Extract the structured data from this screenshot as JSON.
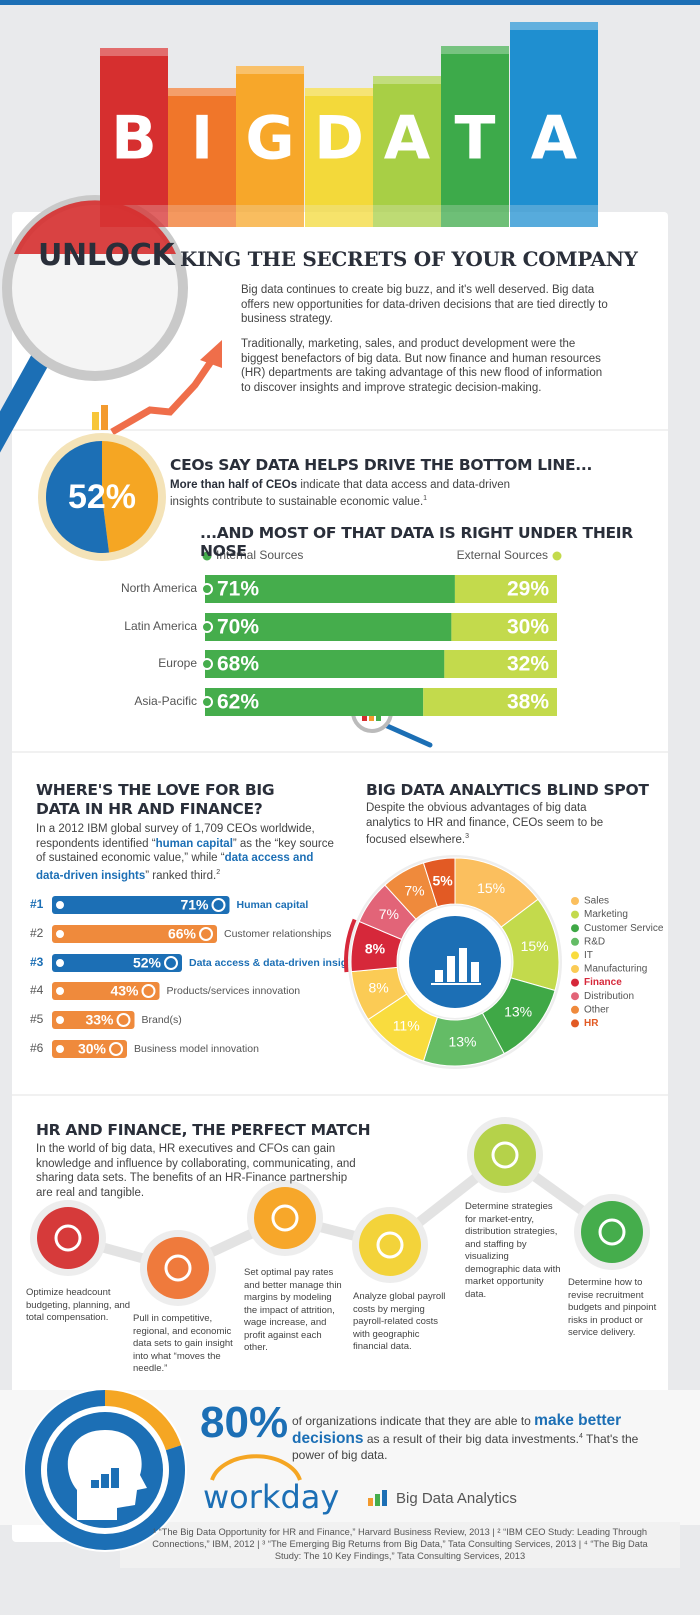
{
  "header": {
    "letters": [
      "B",
      "I",
      "G",
      "D",
      "A",
      "T",
      "A"
    ],
    "unlock": "UNLOCK",
    "subtitle": "KING THE SECRETS OF YOUR COMPANY"
  },
  "intro": [
    "Big data continues to create big buzz, and it's well deserved. Big data offers new opportunities for data-driven decisions that are tied directly to business strategy.",
    "Traditionally, marketing, sales, and product development were the biggest benefactors of big data. But now finance and human resources (HR) departments are taking advantage of this new flood of information to discover insights and improve strategic decision-making."
  ],
  "ceo": {
    "heading": "CEOs SAY DATA HELPS DRIVE THE BOTTOM LINE...",
    "lead": "More than half of CEOs",
    "text": "indicate that data access and data-driven insights contribute to sustainable economic value.",
    "note": "1"
  },
  "sources": {
    "heading": "...AND MOST OF THAT DATA IS RIGHT UNDER THEIR NOSE"
  },
  "love": {
    "heading": "WHERE'S THE LOVE FOR BIG DATA IN HR AND FINANCE?",
    "text": [
      "In a 2012 IBM global survey of 1,709 CEOs worldwide, respondents identified “",
      "human capital",
      "” as the “key source of sustained economic value,” while “",
      "data access and data-driven insights",
      "” ranked third."
    ],
    "note": "2"
  },
  "blind": {
    "heading": "BIG DATA ANALYTICS BLIND SPOT",
    "text": "Despite the obvious advantages of big data analytics to HR and finance, CEOs seem to be focused elsewhere.",
    "note": "3"
  },
  "match": {
    "heading": "HR AND FINANCE, THE PERFECT MATCH",
    "text": "In the world of big data, HR executives and CFOs can gain knowledge and influence by collaborating, communicating, and sharing data sets. The benefits of an HR-Finance partnership are real and tangible.",
    "steps": [
      "Optimize headcount budgeting, planning, and total compensation.",
      "Pull in competitive, regional, and economic data sets to gain insight into what “moves the needle.”",
      "Set optimal pay rates and better manage thin margins by modeling the impact of attrition, wage increase, and profit against each other.",
      "Analyze global payroll costs by merging payroll-related costs with geographic financial data.",
      "Determine strategies for market-entry, distribution strategies, and staffing by visualizing demographic data with market opportunity data.",
      "Determine how to revise recruitment budgets and pinpoint risks in product or service delivery."
    ]
  },
  "closing": {
    "pre": "of organizations indicate that they are able to",
    "emph": "make better decisions",
    "post": "as a result of their big data investments.",
    "note": "4",
    "tail": "That's the power of big data."
  },
  "logos": {
    "workday": "workday",
    "bda": "Big Data Analytics"
  },
  "footer": "¹ “The Big Data Opportunity for HR and Finance,” Harvard Business Review, 2013 | ² “IBM CEO Study: Leading Through Connections,” IBM, 2012 | ³ “The Emerging Big Returns from Big Data,” Tata Consulting Services, 2013 | ⁴ “The Big Data Study: The 10 Key Findings,” Tata Consulting Services, 2013",
  "chart_data": [
    {
      "type": "pie",
      "values": [
        52
      ],
      "value_labels": [
        "52%"
      ],
      "color": "#1c6fb5",
      "rest_color": "#f5a623"
    },
    {
      "type": "bar",
      "orientation": "horizontal",
      "stacked": true,
      "categories": [
        "North America",
        "Latin America",
        "Europe",
        "Asia-Pacific"
      ],
      "series": [
        {
          "name": "Internal Sources",
          "color": "#45ad4c",
          "values": [
            71,
            70,
            68,
            62
          ],
          "value_labels": [
            "71%",
            "70%",
            "68%",
            "62%"
          ]
        },
        {
          "name": "External Sources",
          "color": "#c3da4c",
          "values": [
            29,
            30,
            32,
            38
          ],
          "value_labels": [
            "29%",
            "30%",
            "32%",
            "38%"
          ]
        }
      ],
      "xlim": [
        0,
        100
      ]
    },
    {
      "type": "bar",
      "orientation": "horizontal",
      "categories": [
        "Human capital",
        "Customer relationships",
        "Data access & data-driven insights",
        "Products/services innovation",
        "Brand(s)",
        "Business model innovation"
      ],
      "ranks": [
        "#1",
        "#2",
        "#3",
        "#4",
        "#5",
        "#6"
      ],
      "values": [
        71,
        66,
        52,
        43,
        33,
        30
      ],
      "value_labels": [
        "71%",
        "66%",
        "52%",
        "43%",
        "33%",
        "30%"
      ],
      "colors": [
        "#1c6fb5",
        "#ef8a3c",
        "#1c6fb5",
        "#ef8a3c",
        "#ef8a3c",
        "#ef8a3c"
      ],
      "highlight": [
        0,
        2
      ],
      "xlim": [
        0,
        100
      ]
    },
    {
      "type": "donut",
      "categories": [
        "Sales",
        "Marketing",
        "Customer Service",
        "R&D",
        "IT",
        "Manufacturing",
        "Finance",
        "Distribution",
        "Other",
        "HR"
      ],
      "values": [
        15,
        15,
        13,
        13,
        11,
        8,
        8,
        7,
        7,
        5
      ],
      "value_labels": [
        "15%",
        "15%",
        "13%",
        "13%",
        "11%",
        "8%",
        "8%",
        "7%",
        "7%",
        "5%"
      ],
      "colors": [
        "#fbbf5e",
        "#c3da4c",
        "#3fa846",
        "#64bc66",
        "#f9dc3e",
        "#fbcb55",
        "#d6283a",
        "#e26478",
        "#ef8a3c",
        "#e25a24"
      ],
      "highlight": [
        6,
        9
      ]
    },
    {
      "type": "pie",
      "values": [
        80
      ],
      "value_labels": [
        "80%"
      ],
      "color": "#1c6fb5",
      "rest_color": "#f5a623"
    }
  ]
}
